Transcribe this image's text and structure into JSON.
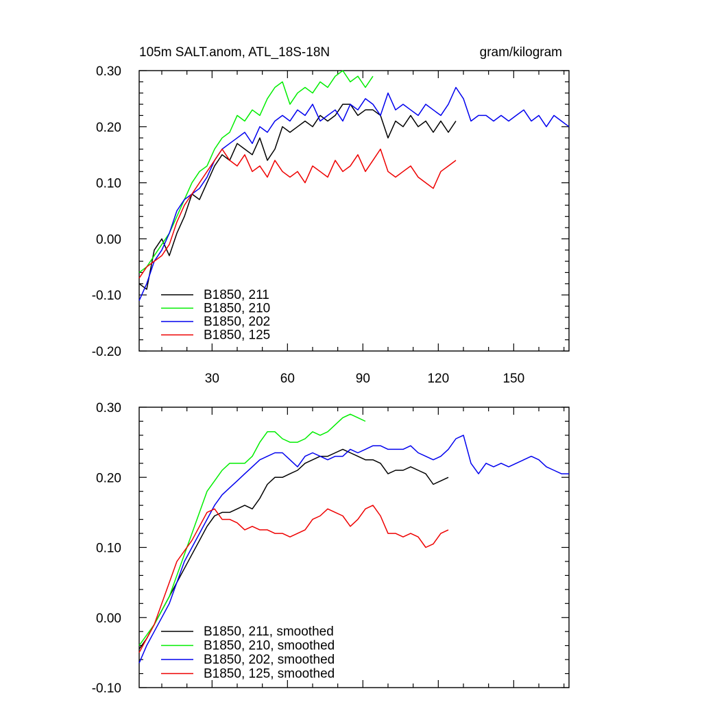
{
  "chart_data": [
    {
      "type": "line",
      "title": "105m SALT.anom, ATL_18S-18N",
      "units": "gram/kilogram",
      "xlim": [
        1,
        172
      ],
      "ylim": [
        -0.2,
        0.3
      ],
      "xticks": [
        30,
        60,
        90,
        120,
        150
      ],
      "xtick_labels": [
        "30",
        "60",
        "90",
        "120",
        "150"
      ],
      "yticks": [
        -0.2,
        -0.1,
        0.0,
        0.1,
        0.2,
        0.3
      ],
      "ytick_labels": [
        "-0.20",
        "-0.10",
        "0.00",
        "0.10",
        "0.20",
        "0.30"
      ],
      "legend_position": "bottom-left",
      "series": [
        {
          "name": "B1850, 211",
          "color": "#000000",
          "x": [
            1,
            4,
            7,
            10,
            13,
            16,
            19,
            22,
            25,
            28,
            31,
            34,
            37,
            40,
            43,
            46,
            49,
            52,
            55,
            58,
            61,
            64,
            67,
            70,
            73,
            76,
            79,
            82,
            85,
            88,
            91,
            94,
            97,
            100,
            103,
            106,
            109,
            112,
            115,
            118,
            121,
            124,
            127
          ],
          "y": [
            -0.08,
            -0.09,
            -0.02,
            0.0,
            -0.03,
            0.01,
            0.04,
            0.08,
            0.07,
            0.1,
            0.13,
            0.15,
            0.14,
            0.17,
            0.16,
            0.15,
            0.18,
            0.14,
            0.16,
            0.2,
            0.19,
            0.2,
            0.21,
            0.2,
            0.22,
            0.21,
            0.22,
            0.24,
            0.24,
            0.22,
            0.23,
            0.23,
            0.22,
            0.18,
            0.21,
            0.2,
            0.22,
            0.2,
            0.21,
            0.19,
            0.21,
            0.19,
            0.21
          ]
        },
        {
          "name": "B1850, 210",
          "color": "#00ee00",
          "x": [
            1,
            4,
            7,
            10,
            13,
            16,
            19,
            22,
            25,
            28,
            31,
            34,
            37,
            40,
            43,
            46,
            49,
            52,
            55,
            58,
            61,
            64,
            67,
            70,
            73,
            76,
            79,
            82,
            85,
            88,
            91,
            94
          ],
          "y": [
            -0.06,
            -0.05,
            -0.03,
            -0.01,
            0.01,
            0.04,
            0.07,
            0.1,
            0.12,
            0.13,
            0.16,
            0.18,
            0.19,
            0.22,
            0.21,
            0.23,
            0.22,
            0.25,
            0.27,
            0.28,
            0.24,
            0.26,
            0.27,
            0.26,
            0.28,
            0.27,
            0.29,
            0.3,
            0.28,
            0.29,
            0.27,
            0.29
          ]
        },
        {
          "name": "B1850, 202",
          "color": "#0000ee",
          "x": [
            1,
            4,
            7,
            10,
            13,
            16,
            19,
            22,
            25,
            28,
            31,
            34,
            37,
            40,
            43,
            46,
            49,
            52,
            55,
            58,
            61,
            64,
            67,
            70,
            73,
            76,
            79,
            82,
            85,
            88,
            91,
            94,
            97,
            100,
            103,
            106,
            109,
            112,
            115,
            118,
            121,
            124,
            127,
            130,
            133,
            136,
            139,
            142,
            145,
            148,
            151,
            154,
            157,
            160,
            163,
            166,
            169,
            172
          ],
          "y": [
            -0.11,
            -0.08,
            -0.04,
            -0.02,
            0.01,
            0.05,
            0.07,
            0.08,
            0.09,
            0.11,
            0.14,
            0.16,
            0.17,
            0.18,
            0.19,
            0.17,
            0.2,
            0.19,
            0.21,
            0.22,
            0.21,
            0.23,
            0.22,
            0.24,
            0.21,
            0.22,
            0.23,
            0.21,
            0.24,
            0.23,
            0.25,
            0.24,
            0.22,
            0.26,
            0.23,
            0.24,
            0.23,
            0.22,
            0.24,
            0.23,
            0.22,
            0.24,
            0.27,
            0.25,
            0.21,
            0.22,
            0.22,
            0.21,
            0.22,
            0.21,
            0.22,
            0.23,
            0.21,
            0.22,
            0.2,
            0.22,
            0.21,
            0.2
          ]
        },
        {
          "name": "B1850, 125",
          "color": "#ee0000",
          "x": [
            1,
            4,
            7,
            10,
            13,
            16,
            19,
            22,
            25,
            28,
            31,
            34,
            37,
            40,
            43,
            46,
            49,
            52,
            55,
            58,
            61,
            64,
            67,
            70,
            73,
            76,
            79,
            82,
            85,
            88,
            91,
            94,
            97,
            100,
            103,
            106,
            109,
            112,
            115,
            118,
            121,
            124,
            127
          ],
          "y": [
            -0.07,
            -0.05,
            -0.04,
            -0.03,
            -0.01,
            0.03,
            0.06,
            0.08,
            0.1,
            0.12,
            0.14,
            0.16,
            0.14,
            0.13,
            0.15,
            0.12,
            0.13,
            0.11,
            0.14,
            0.12,
            0.11,
            0.12,
            0.1,
            0.13,
            0.12,
            0.11,
            0.14,
            0.12,
            0.13,
            0.15,
            0.12,
            0.14,
            0.16,
            0.12,
            0.11,
            0.12,
            0.13,
            0.11,
            0.1,
            0.09,
            0.12,
            0.13,
            0.14
          ]
        }
      ]
    },
    {
      "type": "line",
      "title": "",
      "xlim": [
        1,
        172
      ],
      "ylim": [
        -0.1,
        0.3
      ],
      "xticks": [
        30,
        60,
        90,
        120,
        150
      ],
      "xtick_labels": [],
      "yticks": [
        -0.1,
        0.0,
        0.1,
        0.2,
        0.3
      ],
      "ytick_labels": [
        "-0.10",
        "0.00",
        "0.10",
        "0.20",
        "0.30"
      ],
      "legend_position": "bottom-left",
      "series": [
        {
          "name": "B1850, 211, smoothed",
          "color": "#000000",
          "x": [
            1,
            4,
            7,
            10,
            13,
            16,
            19,
            22,
            25,
            28,
            31,
            34,
            37,
            40,
            43,
            46,
            49,
            52,
            55,
            58,
            61,
            64,
            67,
            70,
            73,
            76,
            79,
            82,
            85,
            88,
            91,
            94,
            97,
            100,
            103,
            106,
            109,
            112,
            115,
            118,
            121,
            124
          ],
          "y": [
            -0.045,
            -0.03,
            -0.01,
            0.01,
            0.03,
            0.05,
            0.07,
            0.09,
            0.11,
            0.13,
            0.145,
            0.15,
            0.15,
            0.155,
            0.16,
            0.155,
            0.17,
            0.19,
            0.2,
            0.2,
            0.205,
            0.21,
            0.22,
            0.225,
            0.23,
            0.23,
            0.235,
            0.24,
            0.235,
            0.23,
            0.225,
            0.225,
            0.22,
            0.205,
            0.21,
            0.21,
            0.215,
            0.21,
            0.205,
            0.19,
            0.195,
            0.2
          ]
        },
        {
          "name": "B1850, 210, smoothed",
          "color": "#00ee00",
          "x": [
            1,
            4,
            7,
            10,
            13,
            16,
            19,
            22,
            25,
            28,
            31,
            34,
            37,
            40,
            43,
            46,
            49,
            52,
            55,
            58,
            61,
            64,
            67,
            70,
            73,
            76,
            79,
            82,
            85,
            88,
            91
          ],
          "y": [
            -0.04,
            -0.025,
            -0.01,
            0.01,
            0.03,
            0.06,
            0.09,
            0.12,
            0.15,
            0.18,
            0.195,
            0.21,
            0.22,
            0.22,
            0.22,
            0.23,
            0.25,
            0.265,
            0.265,
            0.255,
            0.25,
            0.25,
            0.255,
            0.265,
            0.26,
            0.265,
            0.275,
            0.285,
            0.29,
            0.285,
            0.28
          ]
        },
        {
          "name": "B1850, 202, smoothed",
          "color": "#0000ee",
          "x": [
            1,
            4,
            7,
            10,
            13,
            16,
            19,
            22,
            25,
            28,
            31,
            34,
            37,
            40,
            43,
            46,
            49,
            52,
            55,
            58,
            61,
            64,
            67,
            70,
            73,
            76,
            79,
            82,
            85,
            88,
            91,
            94,
            97,
            100,
            103,
            106,
            109,
            112,
            115,
            118,
            121,
            124,
            127,
            130,
            133,
            136,
            139,
            142,
            145,
            148,
            151,
            154,
            157,
            160,
            163,
            166,
            169,
            172
          ],
          "y": [
            -0.065,
            -0.04,
            -0.02,
            0.0,
            0.02,
            0.05,
            0.08,
            0.1,
            0.12,
            0.14,
            0.16,
            0.175,
            0.185,
            0.195,
            0.205,
            0.215,
            0.225,
            0.23,
            0.235,
            0.235,
            0.225,
            0.215,
            0.23,
            0.235,
            0.23,
            0.225,
            0.23,
            0.23,
            0.24,
            0.235,
            0.24,
            0.245,
            0.245,
            0.24,
            0.24,
            0.24,
            0.245,
            0.235,
            0.23,
            0.225,
            0.23,
            0.24,
            0.255,
            0.26,
            0.22,
            0.205,
            0.22,
            0.215,
            0.22,
            0.215,
            0.22,
            0.225,
            0.23,
            0.225,
            0.215,
            0.21,
            0.205,
            0.205
          ]
        },
        {
          "name": "B1850, 125, smoothed",
          "color": "#ee0000",
          "x": [
            1,
            4,
            7,
            10,
            13,
            16,
            19,
            22,
            25,
            28,
            31,
            34,
            37,
            40,
            43,
            46,
            49,
            52,
            55,
            58,
            61,
            64,
            67,
            70,
            73,
            76,
            79,
            82,
            85,
            88,
            91,
            94,
            97,
            100,
            103,
            106,
            109,
            112,
            115,
            118,
            121,
            124
          ],
          "y": [
            -0.05,
            -0.03,
            -0.01,
            0.02,
            0.05,
            0.08,
            0.095,
            0.11,
            0.13,
            0.15,
            0.155,
            0.14,
            0.14,
            0.135,
            0.125,
            0.13,
            0.125,
            0.125,
            0.12,
            0.12,
            0.115,
            0.12,
            0.125,
            0.14,
            0.145,
            0.155,
            0.15,
            0.145,
            0.13,
            0.14,
            0.155,
            0.16,
            0.145,
            0.12,
            0.12,
            0.115,
            0.12,
            0.115,
            0.1,
            0.105,
            0.12,
            0.125
          ]
        }
      ]
    }
  ]
}
